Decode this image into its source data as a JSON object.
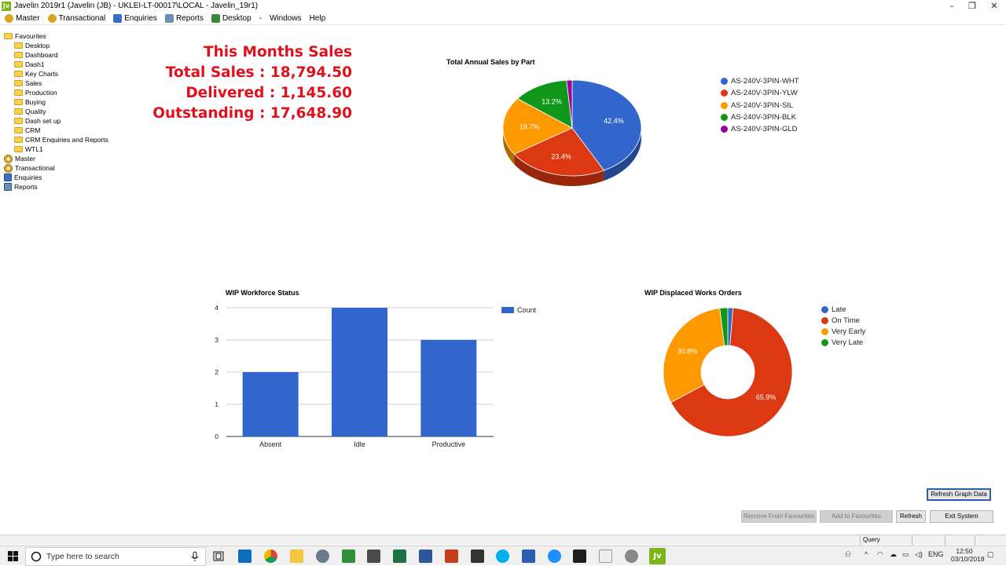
{
  "window": {
    "title": "Javelin 2019r1 (Javelin (JB) - UKLEI-LT-00017\\LOCAL - Javelin_19r1)",
    "app_icon": "Jv"
  },
  "menu": [
    {
      "label": "Master",
      "icon": "master-icon"
    },
    {
      "label": "Transactional",
      "icon": "transactional-icon"
    },
    {
      "label": "Enquiries",
      "icon": "enquiries-icon"
    },
    {
      "label": "Reports",
      "icon": "reports-icon"
    },
    {
      "label": "Desktop",
      "icon": "desktop-icon"
    },
    {
      "label": "-",
      "icon": ""
    },
    {
      "label": "Windows",
      "icon": ""
    },
    {
      "label": "Help",
      "icon": ""
    }
  ],
  "tree": {
    "favourites": "Favourites",
    "fav_items": [
      "Desktop",
      "Dashboard",
      "Dash1",
      "Key Charts",
      "Sales",
      "Production",
      "Buying",
      "Quality",
      "Dash set up",
      "CRM",
      "CRM Enquiries and Reports",
      "WTL1"
    ],
    "root_items": [
      "Master",
      "Transactional",
      "Enquiries",
      "Reports"
    ]
  },
  "sales": {
    "heading": "This Months Sales",
    "total": "Total Sales : 18,794.50",
    "delivered": "Delivered : 1,145.60",
    "outstanding": "Outstanding : 17,648.90"
  },
  "chart_data": [
    {
      "type": "pie",
      "title": "Total Annual Sales by Part",
      "categories": [
        "AS-240V-3PIN-WHT",
        "AS-240V-3PIN-YLW",
        "AS-240V-3PIN-SIL",
        "AS-240V-3PIN-BLK",
        "AS-240V-3PIN-GLD"
      ],
      "values": [
        42.4,
        23.4,
        19.7,
        13.2,
        1.3
      ],
      "labels": [
        "42.4%",
        "23.4%",
        "19.7%",
        "13.2%",
        ""
      ],
      "colors": [
        "#3366cc",
        "#dc3912",
        "#ff9900",
        "#109618",
        "#990099"
      ],
      "legend": "right"
    },
    {
      "type": "bar",
      "title": "WIP Workforce Status",
      "categories": [
        "Absent",
        "Idle",
        "Productive"
      ],
      "series": [
        {
          "name": "Count",
          "values": [
            2,
            4,
            3
          ]
        }
      ],
      "ylim": [
        0,
        4
      ],
      "yticks": [
        "0",
        "1",
        "2",
        "3",
        "4"
      ],
      "color": "#3366cc",
      "legend": "right"
    },
    {
      "type": "pie",
      "title": "WIP Displaced Works Orders",
      "donut": true,
      "categories": [
        "Late",
        "On Time",
        "Very Early",
        "Very Late"
      ],
      "values": [
        1.3,
        65.9,
        30.8,
        2.0
      ],
      "labels": [
        "",
        "65.9%",
        "30.8%",
        ""
      ],
      "colors": [
        "#3366cc",
        "#dc3912",
        "#ff9900",
        "#109618"
      ],
      "legend": "right"
    }
  ],
  "buttons": {
    "refresh_graph": "Refresh Graph Data",
    "remove_fav": "Remove From Favourites",
    "add_fav": "Add to Favourites",
    "refresh": "Refresh",
    "exit": "Exit System"
  },
  "statusbar": {
    "mode": "Query"
  },
  "taskbar": {
    "search_placeholder": "Type here to search",
    "lang": "ENG",
    "time": "12:50",
    "date": "03/10/2018",
    "jv_label": "Jv"
  }
}
